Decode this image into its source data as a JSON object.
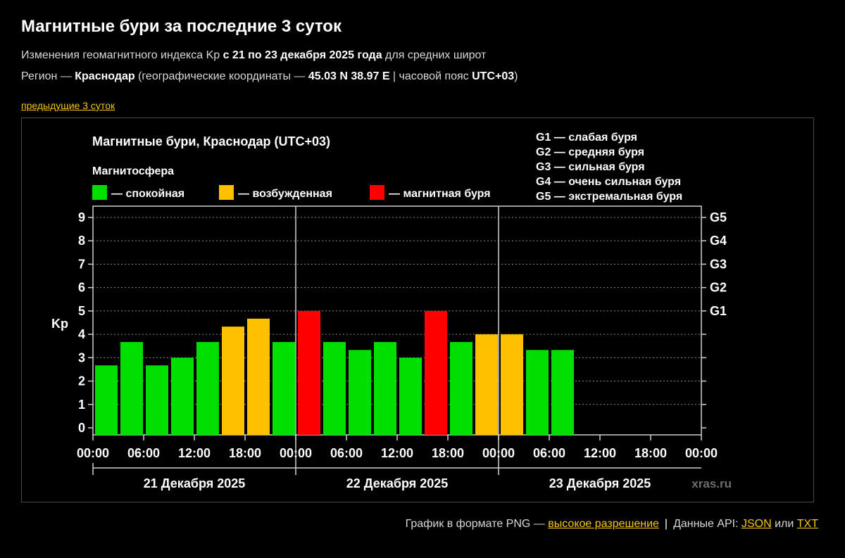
{
  "page": {
    "title": "Магнитные бури за последние 3 суток",
    "line1_prefix": "Изменения геомагнитного индекса Kp ",
    "line1_bold": "с 21 по 23 декабря 2025 года",
    "line1_suffix": " для средних широт",
    "line2_prefix": "Регион — ",
    "line2_region": "Краснодар",
    "line2_mid": " (географические координаты — ",
    "line2_coords": "45.03 N 38.97 E",
    "line2_tz_prefix": " | часовой пояс ",
    "line2_tz": "UTC+03",
    "line2_suffix": ")",
    "prev_link": "предыдущие 3 суток"
  },
  "footer": {
    "png_text": "График в формате PNG — ",
    "png_link": "высокое разрешение",
    "separator": "|",
    "api_text": "Данные API: ",
    "json_link": "JSON",
    "or_text": " или ",
    "txt_link": "TXT"
  },
  "chart_data": {
    "type": "bar",
    "title": "Магнитные бури, Краснодар (UTC+03)",
    "legend_title": "Магнитосфера",
    "legend": [
      {
        "label": "— спокойная",
        "color": "#00e000"
      },
      {
        "label": "— возбужденная",
        "color": "#ffc000"
      },
      {
        "label": "— магнитная буря",
        "color": "#ff0000"
      }
    ],
    "storm_scale": [
      "G1 — слабая буря",
      "G2 — средняя буря",
      "G3 — сильная буря",
      "G4 — очень сильная буря",
      "G5 — экстремальная буря"
    ],
    "ylabel": "Kp",
    "ylim": [
      0,
      9
    ],
    "yticks": [
      "0",
      "1",
      "2",
      "3",
      "4",
      "5",
      "6",
      "7",
      "8",
      "9"
    ],
    "g_levels": [
      {
        "label": "G1",
        "kp": 5
      },
      {
        "label": "G2",
        "kp": 6
      },
      {
        "label": "G3",
        "kp": 7
      },
      {
        "label": "G4",
        "kp": 8
      },
      {
        "label": "G5",
        "kp": 9
      }
    ],
    "x_tick_labels": [
      "00:00",
      "06:00",
      "12:00",
      "18:00",
      "00:00",
      "06:00",
      "12:00",
      "18:00",
      "00:00",
      "06:00",
      "12:00",
      "18:00",
      "00:00"
    ],
    "days": [
      "21 Декабря 2025",
      "22 Декабря 2025",
      "23 Декабря 2025"
    ],
    "watermark": "xras.ru",
    "slots_total": 24,
    "values": [
      2.67,
      3.67,
      2.67,
      3.0,
      3.67,
      4.33,
      4.67,
      3.67,
      5.0,
      3.67,
      3.33,
      3.67,
      3.0,
      5.0,
      3.67,
      4.0,
      4.0,
      3.33,
      3.33
    ],
    "colors": [
      "#00e000",
      "#00e000",
      "#00e000",
      "#00e000",
      "#00e000",
      "#ffc000",
      "#ffc000",
      "#00e000",
      "#ff0000",
      "#00e000",
      "#00e000",
      "#00e000",
      "#00e000",
      "#ff0000",
      "#00e000",
      "#ffc000",
      "#ffc000",
      "#00e000",
      "#00e000"
    ],
    "grid": true
  }
}
